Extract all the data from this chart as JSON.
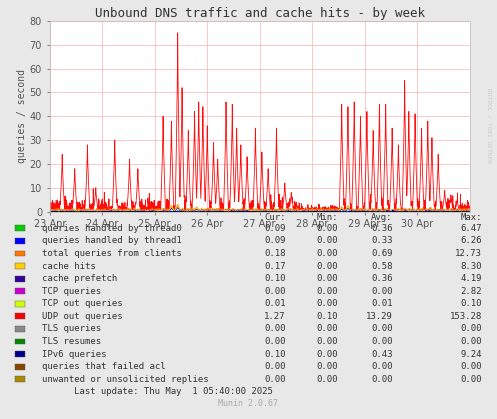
{
  "title": "Unbound DNS traffic and cache hits - by week",
  "ylabel": "queries / second",
  "bg_color": "#e8e8e8",
  "plot_bg_color": "#ffffff",
  "grid_color": "#ffb0b0",
  "ylim": [
    0,
    80
  ],
  "yticks": [
    0,
    10,
    20,
    30,
    40,
    50,
    60,
    70,
    80
  ],
  "xtick_labels": [
    "23 Apr",
    "24 Apr",
    "25 Apr",
    "26 Apr",
    "27 Apr",
    "28 Apr",
    "29 Apr",
    "30 Apr"
  ],
  "watermark": "Munin 2.0.67",
  "side_text": "RDTOOL / TOBI OETKER",
  "legend": [
    {
      "label": "queries handled by thread0",
      "color": "#00cc00",
      "cur": "0.09",
      "min": "0.00",
      "avg": "0.36",
      "max": "6.47"
    },
    {
      "label": "queries handled by thread1",
      "color": "#0000ff",
      "cur": "0.09",
      "min": "0.00",
      "avg": "0.33",
      "max": "6.26"
    },
    {
      "label": "total queries from clients",
      "color": "#ff7700",
      "cur": "0.18",
      "min": "0.00",
      "avg": "0.69",
      "max": "12.73"
    },
    {
      "label": "cache hits",
      "color": "#ffcc00",
      "cur": "0.17",
      "min": "0.00",
      "avg": "0.58",
      "max": "8.30"
    },
    {
      "label": "cache prefetch",
      "color": "#330099",
      "cur": "0.10",
      "min": "0.00",
      "avg": "0.36",
      "max": "4.19"
    },
    {
      "label": "TCP queries",
      "color": "#cc00cc",
      "cur": "0.00",
      "min": "0.00",
      "avg": "0.00",
      "max": "2.82"
    },
    {
      "label": "TCP out queries",
      "color": "#ccff00",
      "cur": "0.01",
      "min": "0.00",
      "avg": "0.01",
      "max": "0.10"
    },
    {
      "label": "UDP out queries",
      "color": "#ff0000",
      "cur": "1.27",
      "min": "0.10",
      "avg": "13.29",
      "max": "153.28"
    },
    {
      "label": "TLS queries",
      "color": "#888888",
      "cur": "0.00",
      "min": "0.00",
      "avg": "0.00",
      "max": "0.00"
    },
    {
      "label": "TLS resumes",
      "color": "#008800",
      "cur": "0.00",
      "min": "0.00",
      "avg": "0.00",
      "max": "0.00"
    },
    {
      "label": "IPv6 queries",
      "color": "#000088",
      "cur": "0.10",
      "min": "0.00",
      "avg": "0.43",
      "max": "9.24"
    },
    {
      "label": "queries that failed acl",
      "color": "#884400",
      "cur": "0.00",
      "min": "0.00",
      "avg": "0.00",
      "max": "0.00"
    },
    {
      "label": "unwanted or unsolicited replies",
      "color": "#aa8800",
      "cur": "0.00",
      "min": "0.00",
      "avg": "0.00",
      "max": "0.00"
    }
  ],
  "last_update": "Last update: Thu May  1 05:40:00 2025"
}
